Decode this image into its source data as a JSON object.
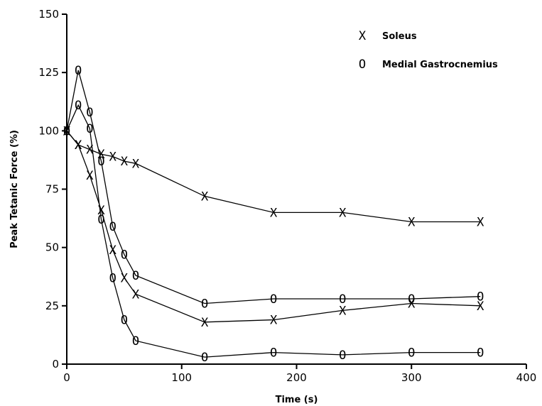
{
  "chart_data": {
    "type": "line",
    "xlabel": "Time (s)",
    "ylabel": "Peak Tetanic Force (%)",
    "xlim": [
      0,
      400
    ],
    "ylim": [
      0,
      150
    ],
    "x_ticks": [
      "0",
      "100",
      "200",
      "300",
      "400"
    ],
    "y_ticks": [
      "0",
      "25",
      "50",
      "75",
      "100",
      "125",
      "150"
    ],
    "grid": false,
    "legend_position": "top-right",
    "legend": [
      {
        "symbol": "X",
        "label": "Soleus"
      },
      {
        "symbol": "O",
        "label": "Medial Gastrocnemius"
      }
    ],
    "series": [
      {
        "name": "Soleus",
        "marker": "X",
        "x": [
          0,
          10,
          20,
          30,
          40,
          50,
          60,
          120,
          180,
          240,
          300,
          360
        ],
        "y": [
          100,
          94,
          92,
          90,
          89,
          87,
          86,
          72,
          65,
          65,
          61,
          61
        ]
      },
      {
        "name": "Soleus",
        "marker": "X",
        "x": [
          0,
          10,
          20,
          30,
          40,
          50,
          60,
          120,
          180,
          240,
          300,
          360
        ],
        "y": [
          100,
          94,
          81,
          66,
          49,
          37,
          30,
          18,
          19,
          23,
          26,
          25
        ]
      },
      {
        "name": "Medial Gastrocnemius",
        "marker": "O",
        "x": [
          0,
          10,
          20,
          30,
          40,
          50,
          60,
          120,
          180,
          240,
          300,
          360
        ],
        "y": [
          100,
          126,
          108,
          87,
          59,
          47,
          38,
          26,
          28,
          28,
          28,
          29
        ]
      },
      {
        "name": "Medial Gastrocnemius",
        "marker": "O",
        "x": [
          0,
          10,
          20,
          30,
          40,
          50,
          60,
          120,
          180,
          240,
          300,
          360
        ],
        "y": [
          100,
          111,
          101,
          62,
          37,
          19,
          10,
          3,
          5,
          4,
          5,
          5
        ]
      }
    ]
  }
}
